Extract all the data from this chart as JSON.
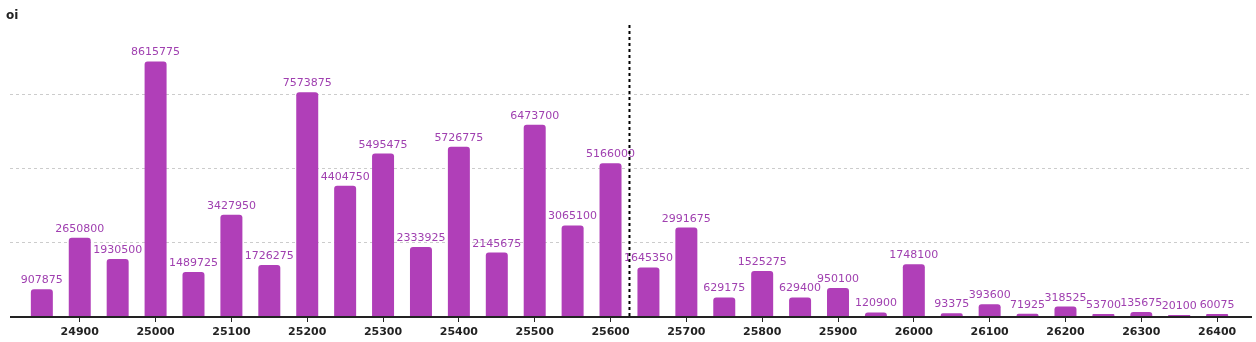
{
  "chart_data": {
    "type": "bar",
    "ylabel": "oi",
    "x": [
      24850,
      24900,
      24950,
      25000,
      25050,
      25100,
      25150,
      25200,
      25250,
      25300,
      25350,
      25400,
      25450,
      25500,
      25550,
      25600,
      25650,
      25700,
      25750,
      25800,
      25850,
      25900,
      25950,
      26000,
      26050,
      26100,
      26150,
      26200,
      26250,
      26300,
      26350,
      26400
    ],
    "series": [
      {
        "color": "#b03fb8",
        "values": [
          907875,
          2650800,
          1930500,
          8615775,
          1489725,
          3427950,
          1726275,
          7573875,
          4404750,
          5495475,
          2333925,
          5726775,
          2145675,
          6473700,
          3065100,
          5166000,
          1645350,
          2991675,
          629175,
          1525275,
          629400,
          950100,
          120900,
          1748100,
          93375,
          393600,
          71925,
          318525,
          53700,
          135675,
          20100,
          60075
        ]
      }
    ],
    "data_labels": true,
    "xlim": [
      24808,
      26446
    ],
    "xticks": [
      24900,
      25000,
      25100,
      25200,
      25300,
      25400,
      25500,
      25600,
      25700,
      25800,
      25900,
      26000,
      26100,
      26200,
      26300,
      26400
    ],
    "ylim": [
      0,
      9950000
    ],
    "yticks": [
      {
        "value": 2500000,
        "label": null
      },
      {
        "value": 5000000,
        "label": null
      },
      {
        "value": 7500000,
        "label": null
      }
    ],
    "tick_labels": "x",
    "grid": "y",
    "ref_lines": [
      {
        "axis": "x",
        "value": 25625,
        "label": null,
        "color": "#000000",
        "line_style": "dotted"
      }
    ]
  }
}
